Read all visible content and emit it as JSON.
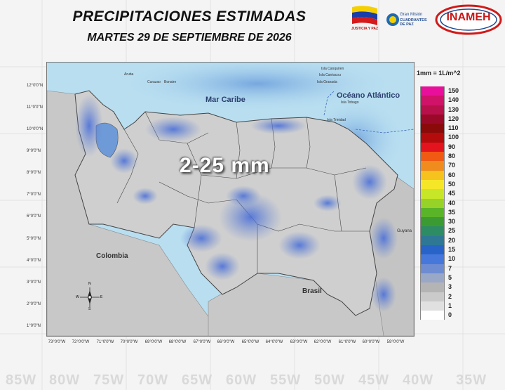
{
  "header": {
    "title": "PRECIPITACIONES ESTIMADAS",
    "date": "MARTES 29 DE SEPTIEMBRE DE 2026"
  },
  "logos": {
    "flag_caption": "JUSTICIA Y PAZ",
    "gmcp_line1": "Gran Misión",
    "gmcp_line2": "CUADRANTES DE PAZ",
    "inameh": "INAMEH"
  },
  "map": {
    "rain_label": "2-25 mm",
    "labels": {
      "mar_caribe": "Mar Caribe",
      "oceano": "Océano Atlántico",
      "colombia": "Colombia",
      "brasil": "Brasil",
      "guyana": "Guyana"
    },
    "islands": [
      "Aruba",
      "Curazao",
      "Bonaire",
      "Isla Canquiren",
      "Isla Carriacou",
      "Isla Granada",
      "Isla Tobago",
      "Isla Trinidad"
    ],
    "lat_ticks": [
      "12°0'0\"N",
      "11°0'0\"N",
      "10°0'0\"N",
      "9°0'0\"N",
      "8°0'0\"N",
      "7°0'0\"N",
      "6°0'0\"N",
      "5°0'0\"N",
      "4°0'0\"N",
      "3°0'0\"N",
      "2°0'0\"N",
      "1°0'0\"N"
    ],
    "lon_ticks": [
      "73°0'0\"W",
      "72°0'0\"W",
      "71°0'0\"W",
      "70°0'0\"W",
      "69°0'0\"W",
      "68°0'0\"W",
      "67°0'0\"W",
      "66°0'0\"W",
      "65°0'0\"W",
      "64°0'0\"W",
      "63°0'0\"W",
      "62°0'0\"W",
      "61°0'0\"W",
      "60°0'0\"W",
      "59°0'0\"W"
    ],
    "compass": {
      "n": "N",
      "s": "S",
      "e": "E",
      "w": "W"
    }
  },
  "legend": {
    "unit": "1mm = 1L/m^2",
    "entries": [
      {
        "value": "150",
        "color": "#e8109a"
      },
      {
        "value": "140",
        "color": "#d01268"
      },
      {
        "value": "130",
        "color": "#b8104a"
      },
      {
        "value": "120",
        "color": "#9a0a28"
      },
      {
        "value": "110",
        "color": "#8a0a0a"
      },
      {
        "value": "100",
        "color": "#b40c0c"
      },
      {
        "value": "90",
        "color": "#e4141e"
      },
      {
        "value": "80",
        "color": "#f05a12"
      },
      {
        "value": "70",
        "color": "#f08c1e"
      },
      {
        "value": "60",
        "color": "#f5c21e"
      },
      {
        "value": "50",
        "color": "#f5e628"
      },
      {
        "value": "45",
        "color": "#c8e628"
      },
      {
        "value": "40",
        "color": "#96d228"
      },
      {
        "value": "35",
        "color": "#5ab428"
      },
      {
        "value": "30",
        "color": "#3c9a32"
      },
      {
        "value": "25",
        "color": "#2e8c64"
      },
      {
        "value": "20",
        "color": "#2e7896"
      },
      {
        "value": "15",
        "color": "#2864c8"
      },
      {
        "value": "10",
        "color": "#4678dc"
      },
      {
        "value": "7",
        "color": "#6e8cd2"
      },
      {
        "value": "5",
        "color": "#9aa8c8"
      },
      {
        "value": "3",
        "color": "#b4b4b4"
      },
      {
        "value": "2",
        "color": "#cacaca"
      },
      {
        "value": "1",
        "color": "#e0e0e0"
      },
      {
        "value": "0",
        "color": "#ffffff"
      }
    ]
  },
  "background_lon": [
    "85W",
    "80W",
    "75W",
    "70W",
    "65W",
    "60W",
    "55W",
    "50W",
    "45W",
    "40W",
    "35W"
  ]
}
